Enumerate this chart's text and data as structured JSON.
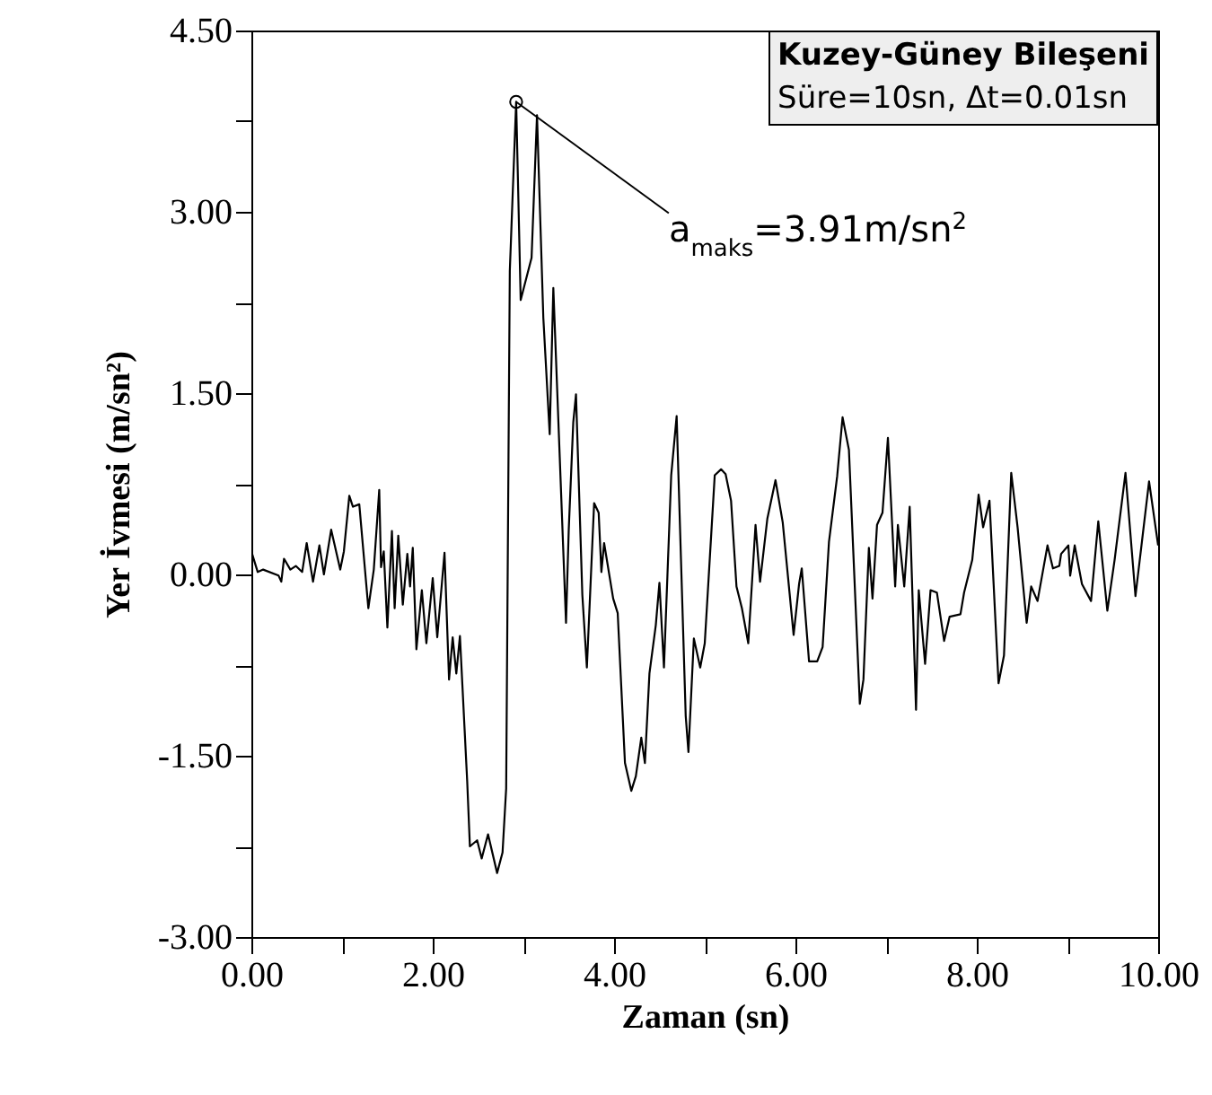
{
  "chart_data": {
    "type": "line",
    "title": "Kuzey-Güney Bileşeni",
    "subtitle": "Süre=10sn, Δt=0.01sn",
    "xlabel": "Zaman (sn)",
    "ylabel": "Yer İvmesi (m/sn²)",
    "annotations": [
      {
        "text": "a$_{maks}$=3.91m/sn$^{2}$",
        "x": 2.92,
        "y": 3.91
      }
    ],
    "xlim": [
      0,
      10
    ],
    "ylim": [
      -3,
      4.5
    ],
    "xticks": [
      {
        "value": 0,
        "label": "0.00"
      },
      {
        "value": 1,
        "label": null
      },
      {
        "value": 2,
        "label": "2.00"
      },
      {
        "value": 3,
        "label": null
      },
      {
        "value": 4,
        "label": "4.00"
      },
      {
        "value": 5,
        "label": null
      },
      {
        "value": 6,
        "label": "6.00"
      },
      {
        "value": 7,
        "label": null
      },
      {
        "value": 8,
        "label": "8.00"
      },
      {
        "value": 9,
        "label": null
      },
      {
        "value": 10,
        "label": "10.00"
      }
    ],
    "yticks": [
      {
        "value": -3,
        "label": "-3.00"
      },
      {
        "value": -2.25,
        "label": null
      },
      {
        "value": -1.5,
        "label": "-1.50"
      },
      {
        "value": -0.75,
        "label": null
      },
      {
        "value": 0,
        "label": "0.00"
      },
      {
        "value": 0.75,
        "label": null
      },
      {
        "value": 1.5,
        "label": "1.50"
      },
      {
        "value": 2.25,
        "label": null
      },
      {
        "value": 3,
        "label": "3.00"
      },
      {
        "value": 3.75,
        "label": null
      },
      {
        "value": 4.5,
        "label": "4.50"
      }
    ],
    "series": [
      {
        "color": "#000000",
        "x": [
          0,
          0.07,
          0.13,
          0.3,
          0.33,
          0.36,
          0.43,
          0.49,
          0.56,
          0.61,
          0.68,
          0.75,
          0.8,
          0.88,
          0.98,
          1.02,
          1.08,
          1.12,
          1.19,
          1.29,
          1.35,
          1.41,
          1.43,
          1.46,
          1.5,
          1.55,
          1.58,
          1.62,
          1.67,
          1.72,
          1.75,
          1.78,
          1.82,
          1.88,
          1.93,
          2.0,
          2.05,
          2.13,
          2.18,
          2.22,
          2.26,
          2.3,
          2.38,
          2.41,
          2.49,
          2.54,
          2.61,
          2.71,
          2.77,
          2.81,
          2.85,
          2.92,
          2.97,
          3.09,
          3.15,
          3.22,
          3.29,
          3.33,
          3.47,
          3.5,
          3.55,
          3.58,
          3.65,
          3.7,
          3.78,
          3.83,
          3.86,
          3.89,
          3.99,
          4.04,
          4.12,
          4.19,
          4.24,
          4.3,
          4.34,
          4.39,
          4.46,
          4.5,
          4.55,
          4.63,
          4.69,
          4.79,
          4.82,
          4.88,
          4.95,
          5.0,
          5.11,
          5.18,
          5.23,
          5.29,
          5.35,
          5.41,
          5.48,
          5.56,
          5.61,
          5.69,
          5.78,
          5.86,
          5.98,
          6.04,
          6.07,
          6.15,
          6.24,
          6.3,
          6.37,
          6.46,
          6.52,
          6.59,
          6.71,
          6.75,
          6.81,
          6.85,
          6.9,
          6.96,
          7.02,
          7.1,
          7.13,
          7.2,
          7.26,
          7.33,
          7.36,
          7.43,
          7.49,
          7.56,
          7.64,
          7.7,
          7.82,
          7.86,
          7.95,
          8.02,
          8.07,
          8.14,
          8.24,
          8.3,
          8.38,
          8.45,
          8.55,
          8.6,
          8.67,
          8.78,
          8.84,
          8.91,
          8.93,
          9.01,
          9.03,
          9.08,
          9.16,
          9.26,
          9.34,
          9.44,
          9.52,
          9.64,
          9.75,
          9.9,
          10.0
        ],
        "values": [
          0.19,
          0.02,
          0.04,
          -0.01,
          -0.06,
          0.13,
          0.04,
          0.07,
          0.02,
          0.26,
          -0.06,
          0.24,
          0.0,
          0.37,
          0.04,
          0.19,
          0.65,
          0.56,
          0.58,
          -0.28,
          0.04,
          0.7,
          0.06,
          0.19,
          -0.44,
          0.36,
          -0.28,
          0.32,
          -0.25,
          0.17,
          -0.1,
          0.22,
          -0.62,
          -0.13,
          -0.57,
          -0.03,
          -0.52,
          0.18,
          -0.87,
          -0.52,
          -0.82,
          -0.51,
          -1.71,
          -2.25,
          -2.2,
          -2.35,
          -2.15,
          -2.47,
          -2.3,
          -1.77,
          2.51,
          3.91,
          2.27,
          2.62,
          3.8,
          2.12,
          1.16,
          2.37,
          -0.4,
          0.37,
          1.26,
          1.49,
          -0.17,
          -0.77,
          0.59,
          0.51,
          0.02,
          0.26,
          -0.2,
          -0.32,
          -1.56,
          -1.79,
          -1.67,
          -1.35,
          -1.56,
          -0.82,
          -0.42,
          -0.07,
          -0.77,
          0.82,
          1.31,
          -1.17,
          -1.47,
          -0.53,
          -0.77,
          -0.57,
          0.82,
          0.87,
          0.83,
          0.61,
          -0.1,
          -0.28,
          -0.57,
          0.41,
          -0.06,
          0.46,
          0.78,
          0.43,
          -0.5,
          -0.08,
          0.05,
          -0.72,
          -0.72,
          -0.6,
          0.27,
          0.81,
          1.3,
          1.03,
          -1.07,
          -0.87,
          0.22,
          -0.2,
          0.41,
          0.51,
          1.13,
          -0.1,
          0.41,
          -0.1,
          0.56,
          -1.12,
          -0.13,
          -0.74,
          -0.13,
          -0.15,
          -0.55,
          -0.35,
          -0.33,
          -0.15,
          0.12,
          0.66,
          0.39,
          0.61,
          -0.9,
          -0.67,
          0.84,
          0.39,
          -0.4,
          -0.1,
          -0.22,
          0.24,
          0.05,
          0.07,
          0.17,
          0.24,
          -0.01,
          0.24,
          -0.08,
          -0.22,
          0.44,
          -0.3,
          0.12,
          0.84,
          -0.18,
          0.77,
          0.24
        ]
      }
    ]
  }
}
